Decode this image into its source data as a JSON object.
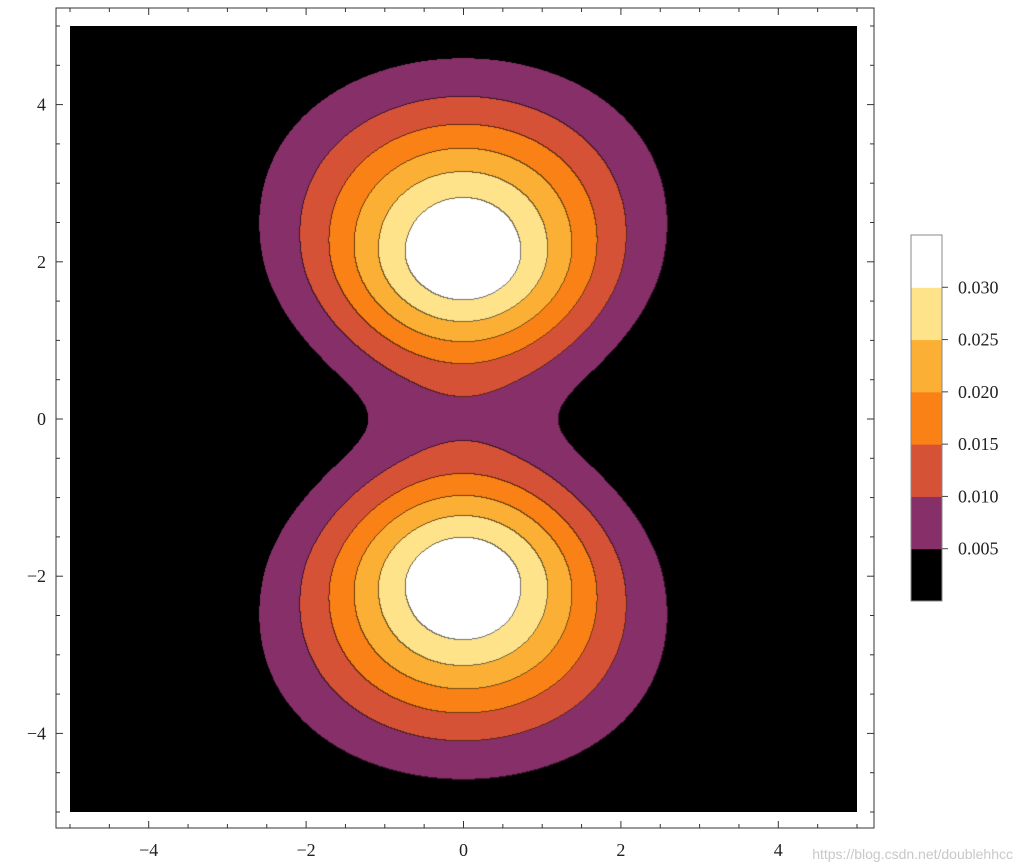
{
  "chart_data": {
    "type": "contour",
    "title": "",
    "xlabel": "",
    "ylabel": "",
    "xlim": [
      -5,
      5
    ],
    "ylim": [
      -5,
      5
    ],
    "x_ticks": [
      -4,
      -2,
      0,
      2,
      4
    ],
    "y_ticks": [
      -4,
      -2,
      0,
      2,
      4
    ],
    "x_tick_labels": [
      "−4",
      "−2",
      "0",
      "2",
      "4"
    ],
    "y_tick_labels": [
      "−4",
      "−2",
      "0",
      "2",
      "4"
    ],
    "grid": false,
    "contour_levels": [
      0.005,
      0.01,
      0.015,
      0.02,
      0.025,
      0.03
    ],
    "level_colors": [
      "#000000",
      "#862f68",
      "#d65236",
      "#fa8115",
      "#fbb035",
      "#ffe38a",
      "#ffffff"
    ],
    "peaks": [
      {
        "x": 0,
        "y": 2.1,
        "value_above": 0.03
      },
      {
        "x": 0,
        "y": -2.1,
        "value_above": 0.03
      }
    ],
    "legend": {
      "placement": "right",
      "labels": [
        "0.030",
        "0.025",
        "0.020",
        "0.015",
        "0.010",
        "0.005"
      ]
    }
  },
  "watermark": "https://blog.csdn.net/doublehhcc"
}
